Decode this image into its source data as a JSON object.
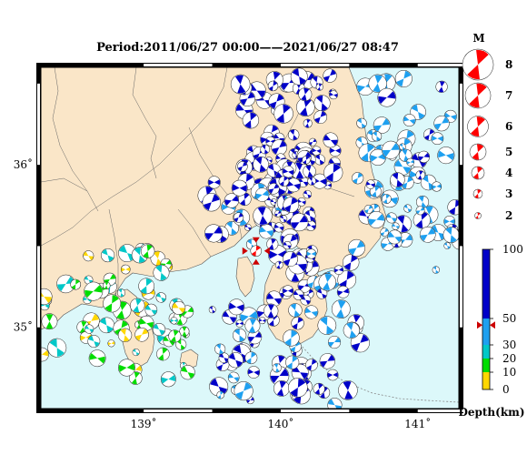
{
  "title": "Period:2011/06/27 00:00——2021/06/27 08:47",
  "map": {
    "lon_range": [
      138.25,
      141.3
    ],
    "lat_range": [
      34.5,
      36.6
    ],
    "lon_ticks": [
      {
        "value": 139,
        "label": "139˚"
      },
      {
        "value": 140,
        "label": "140˚"
      },
      {
        "value": 141,
        "label": "141˚"
      }
    ],
    "lat_ticks": [
      {
        "value": 36,
        "label": "36˚"
      },
      {
        "value": 35,
        "label": "35˚"
      }
    ],
    "land_color": "#fae6c8",
    "sea_color": "#dcf8fa",
    "mainshock": {
      "lon": 139.82,
      "lat": 35.47,
      "color": "#ff0000"
    }
  },
  "magnitude_legend": {
    "title": "M",
    "items": [
      {
        "label": "8"
      },
      {
        "label": "7"
      },
      {
        "label": "6"
      },
      {
        "label": "5"
      },
      {
        "label": "4"
      },
      {
        "label": "3"
      },
      {
        "label": "2"
      }
    ]
  },
  "depth_scale": {
    "title": "Depth(km)",
    "ticks": [
      {
        "value": 100,
        "label": "100"
      },
      {
        "value": 50,
        "label": "50"
      },
      {
        "value": 30,
        "label": "30"
      },
      {
        "value": 20,
        "label": "20"
      },
      {
        "value": 10,
        "label": "10"
      },
      {
        "value": 0,
        "label": "0"
      }
    ],
    "bands": [
      {
        "from": 0,
        "to": 10,
        "color": "#ffd700"
      },
      {
        "from": 10,
        "to": 20,
        "color": "#00dd00"
      },
      {
        "from": 20,
        "to": 30,
        "color": "#00c8c8"
      },
      {
        "from": 30,
        "to": 50,
        "color": "#1ea0f0"
      },
      {
        "from": 50,
        "to": 100,
        "color": "#0000c8"
      }
    ],
    "marker_depth": 45
  }
}
